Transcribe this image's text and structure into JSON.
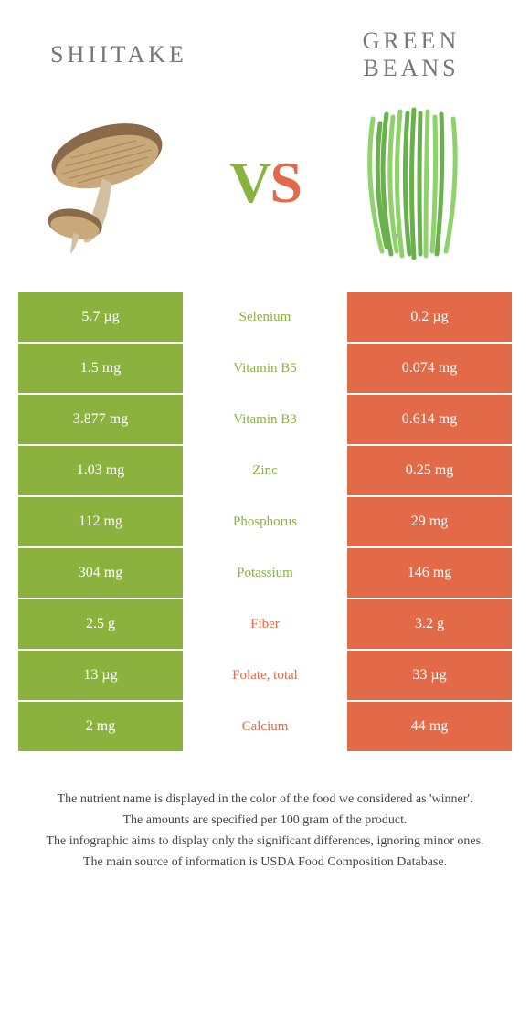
{
  "colors": {
    "left": "#8bb23f",
    "right": "#e36a48",
    "background": "#ffffff"
  },
  "foods": {
    "left": {
      "title": "SHIITAKE"
    },
    "right": {
      "title": "GREEN BEANS"
    }
  },
  "vs": {
    "v": "V",
    "s": "S"
  },
  "rows": [
    {
      "nutrient": "Selenium",
      "left": "5.7 µg",
      "right": "0.2 µg",
      "winner": "left"
    },
    {
      "nutrient": "Vitamin B5",
      "left": "1.5 mg",
      "right": "0.074 mg",
      "winner": "left"
    },
    {
      "nutrient": "Vitamin B3",
      "left": "3.877 mg",
      "right": "0.614 mg",
      "winner": "left"
    },
    {
      "nutrient": "Zinc",
      "left": "1.03 mg",
      "right": "0.25 mg",
      "winner": "left"
    },
    {
      "nutrient": "Phosphorus",
      "left": "112 mg",
      "right": "29 mg",
      "winner": "left"
    },
    {
      "nutrient": "Potassium",
      "left": "304 mg",
      "right": "146 mg",
      "winner": "left"
    },
    {
      "nutrient": "Fiber",
      "left": "2.5 g",
      "right": "3.2 g",
      "winner": "right"
    },
    {
      "nutrient": "Folate, total",
      "left": "13 µg",
      "right": "33 µg",
      "winner": "right"
    },
    {
      "nutrient": "Calcium",
      "left": "2 mg",
      "right": "44 mg",
      "winner": "right"
    }
  ],
  "footer": {
    "line1": "The nutrient name is displayed in the color of the food we considered as 'winner'.",
    "line2": "The amounts are specified per 100 gram of the product.",
    "line3": "The infographic aims to display only the significant differences, ignoring minor ones.",
    "line4": "The main source of information is USDA Food Composition Database."
  }
}
